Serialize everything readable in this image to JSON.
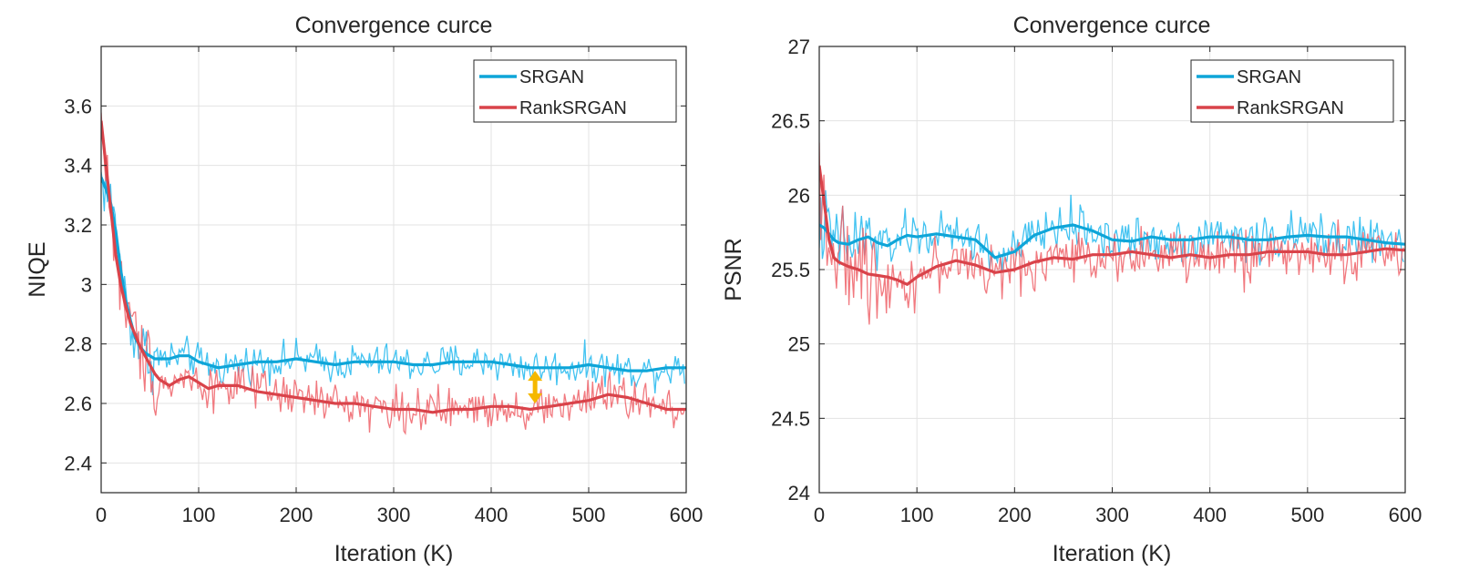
{
  "chart_data": [
    {
      "type": "line",
      "title": "Convergence curce",
      "xlabel": "Iteration (K)",
      "ylabel": "NIQE",
      "xlim": [
        0,
        600
      ],
      "ylim": [
        2.3,
        3.8
      ],
      "xticks": [
        "0",
        "100",
        "200",
        "300",
        "400",
        "500",
        "600"
      ],
      "yticks": [
        "2.4",
        "2.6",
        "2.8",
        "3",
        "3.2",
        "3.4",
        "3.6"
      ],
      "xtick_values": [
        0,
        100,
        200,
        300,
        400,
        500,
        600
      ],
      "ytick_values": [
        2.4,
        2.6,
        2.8,
        3.0,
        3.2,
        3.4,
        3.6
      ],
      "grid": true,
      "legend_position": "top-right",
      "annotation": "yellow double-headed arrow near x=445 between the two curves",
      "annotation_x": 445,
      "annotation_y": [
        2.6,
        2.71
      ],
      "noise_amplitude": [
        0.06,
        0.07
      ],
      "series": [
        {
          "name": "SRGAN",
          "color": "#0ea5d8",
          "raw_color": "#22b8ee",
          "x": [
            0,
            5,
            10,
            15,
            20,
            25,
            30,
            35,
            40,
            45,
            50,
            55,
            60,
            70,
            80,
            90,
            100,
            110,
            120,
            140,
            160,
            180,
            200,
            220,
            240,
            260,
            280,
            300,
            320,
            340,
            360,
            380,
            400,
            420,
            440,
            460,
            480,
            500,
            520,
            540,
            560,
            580,
            600
          ],
          "y": [
            3.36,
            3.32,
            3.27,
            3.18,
            3.05,
            2.95,
            2.88,
            2.82,
            2.79,
            2.77,
            2.76,
            2.75,
            2.75,
            2.75,
            2.76,
            2.76,
            2.74,
            2.73,
            2.72,
            2.73,
            2.74,
            2.74,
            2.75,
            2.74,
            2.73,
            2.74,
            2.74,
            2.74,
            2.73,
            2.73,
            2.74,
            2.74,
            2.74,
            2.73,
            2.72,
            2.72,
            2.72,
            2.73,
            2.72,
            2.71,
            2.71,
            2.72,
            2.72
          ]
        },
        {
          "name": "RankSRGAN",
          "color": "#d9434a",
          "raw_color": "#ee6268",
          "x": [
            0,
            5,
            10,
            15,
            20,
            25,
            30,
            35,
            40,
            45,
            50,
            55,
            60,
            70,
            80,
            90,
            100,
            110,
            120,
            140,
            160,
            180,
            200,
            220,
            240,
            260,
            280,
            300,
            320,
            340,
            360,
            380,
            400,
            420,
            440,
            460,
            480,
            500,
            520,
            540,
            560,
            580,
            600
          ],
          "y": [
            3.55,
            3.4,
            3.25,
            3.1,
            3.0,
            2.93,
            2.87,
            2.83,
            2.79,
            2.76,
            2.73,
            2.7,
            2.68,
            2.66,
            2.68,
            2.69,
            2.67,
            2.65,
            2.66,
            2.66,
            2.64,
            2.63,
            2.62,
            2.61,
            2.6,
            2.6,
            2.59,
            2.58,
            2.58,
            2.57,
            2.58,
            2.58,
            2.59,
            2.59,
            2.58,
            2.59,
            2.6,
            2.61,
            2.63,
            2.62,
            2.6,
            2.58,
            2.58
          ]
        }
      ]
    },
    {
      "type": "line",
      "title": "Convergence curce",
      "xlabel": "Iteration (K)",
      "ylabel": "PSNR",
      "xlim": [
        0,
        600
      ],
      "ylim": [
        24,
        27
      ],
      "xticks": [
        "0",
        "100",
        "200",
        "300",
        "400",
        "500",
        "600"
      ],
      "yticks": [
        "24",
        "24.5",
        "25",
        "25.5",
        "26",
        "26.5",
        "27"
      ],
      "xtick_values": [
        0,
        100,
        200,
        300,
        400,
        500,
        600
      ],
      "ytick_values": [
        24,
        24.5,
        25,
        25.5,
        26,
        26.5,
        27
      ],
      "grid": true,
      "legend_position": "top-right",
      "noise_amplitude": [
        0.15,
        0.18
      ],
      "series": [
        {
          "name": "SRGAN",
          "color": "#0ea5d8",
          "raw_color": "#22b8ee",
          "x": [
            0,
            5,
            10,
            15,
            20,
            30,
            40,
            50,
            60,
            70,
            80,
            90,
            100,
            120,
            140,
            160,
            180,
            200,
            220,
            240,
            260,
            280,
            300,
            320,
            340,
            360,
            380,
            400,
            420,
            440,
            460,
            480,
            500,
            520,
            540,
            560,
            580,
            600
          ],
          "y": [
            25.8,
            25.78,
            25.74,
            25.7,
            25.68,
            25.67,
            25.7,
            25.72,
            25.68,
            25.66,
            25.7,
            25.73,
            25.72,
            25.74,
            25.72,
            25.7,
            25.58,
            25.62,
            25.73,
            25.78,
            25.8,
            25.76,
            25.7,
            25.69,
            25.72,
            25.7,
            25.7,
            25.72,
            25.72,
            25.7,
            25.7,
            25.72,
            25.73,
            25.72,
            25.72,
            25.7,
            25.68,
            25.67
          ]
        },
        {
          "name": "RankSRGAN",
          "color": "#d9434a",
          "raw_color": "#ee6268",
          "x": [
            0,
            5,
            10,
            15,
            20,
            30,
            40,
            50,
            60,
            70,
            80,
            90,
            100,
            120,
            140,
            160,
            180,
            200,
            220,
            240,
            260,
            280,
            300,
            320,
            340,
            360,
            380,
            400,
            420,
            440,
            460,
            480,
            500,
            520,
            540,
            560,
            580,
            600
          ],
          "y": [
            26.2,
            25.95,
            25.7,
            25.58,
            25.55,
            25.52,
            25.5,
            25.47,
            25.46,
            25.45,
            25.43,
            25.4,
            25.45,
            25.52,
            25.56,
            25.53,
            25.48,
            25.5,
            25.55,
            25.58,
            25.57,
            25.6,
            25.6,
            25.62,
            25.6,
            25.58,
            25.6,
            25.58,
            25.6,
            25.6,
            25.62,
            25.62,
            25.62,
            25.6,
            25.6,
            25.62,
            25.64,
            25.63
          ]
        }
      ]
    }
  ]
}
